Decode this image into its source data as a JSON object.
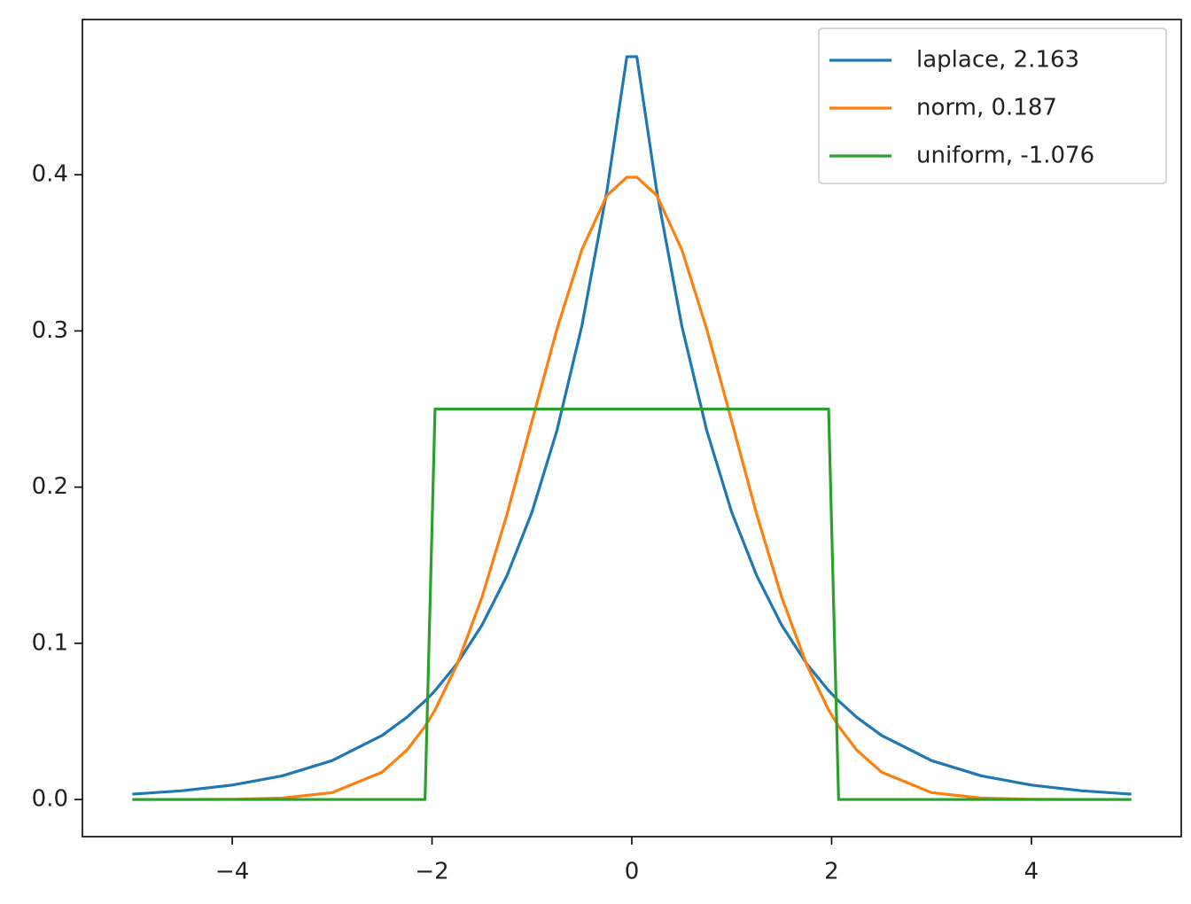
{
  "chart_data": {
    "type": "line",
    "x": [
      -5,
      -4.5,
      -4,
      -3.5,
      -3,
      -2.5,
      -2.25,
      -2.07,
      -1.97,
      -1.75,
      -1.5,
      -1.25,
      -1,
      -0.75,
      -0.5,
      -0.25,
      -0.05,
      0.05,
      0.25,
      0.5,
      0.75,
      1,
      1.25,
      1.5,
      1.75,
      1.97,
      2.07,
      2.25,
      2.5,
      3,
      3.5,
      4,
      4.5,
      5
    ],
    "series": [
      {
        "name": "laplace, 2.163",
        "color": "#1f77b4",
        "values": [
          0.0034,
          0.0056,
          0.0092,
          0.0151,
          0.0249,
          0.041,
          0.0527,
          0.0631,
          0.0697,
          0.0869,
          0.1116,
          0.1433,
          0.1839,
          0.2362,
          0.3033,
          0.3894,
          0.4756,
          0.4756,
          0.3894,
          0.3033,
          0.2362,
          0.1839,
          0.1433,
          0.1116,
          0.0869,
          0.0697,
          0.0631,
          0.0527,
          0.041,
          0.0249,
          0.0151,
          0.0092,
          0.0056,
          0.0034
        ]
      },
      {
        "name": "norm, 0.187",
        "color": "#ff7f0e",
        "values": [
          0.0,
          0.0,
          0.0001,
          0.0009,
          0.0044,
          0.0175,
          0.0317,
          0.0468,
          0.0573,
          0.0863,
          0.1295,
          0.1826,
          0.242,
          0.3011,
          0.3521,
          0.3867,
          0.3984,
          0.3984,
          0.3867,
          0.3521,
          0.3011,
          0.242,
          0.1826,
          0.1295,
          0.0863,
          0.0573,
          0.0468,
          0.0317,
          0.0175,
          0.0044,
          0.0009,
          0.0001,
          0.0,
          0.0
        ]
      },
      {
        "name": "uniform, -1.076",
        "color": "#2ca02c",
        "values": [
          0,
          0,
          0,
          0,
          0,
          0,
          0,
          0,
          0.25,
          0.25,
          0.25,
          0.25,
          0.25,
          0.25,
          0.25,
          0.25,
          0.25,
          0.25,
          0.25,
          0.25,
          0.25,
          0.25,
          0.25,
          0.25,
          0.25,
          0.25,
          0,
          0,
          0,
          0,
          0,
          0,
          0,
          0
        ]
      }
    ],
    "xlim": [
      -5.5,
      5.5
    ],
    "xticks": [
      {
        "value": -4,
        "label": "−4"
      },
      {
        "value": -2,
        "label": "−2"
      },
      0,
      2,
      4
    ],
    "ylim": [
      -0.0238,
      0.4994
    ],
    "yticks": [
      {
        "value": 0,
        "label": "0.0"
      },
      0.1,
      0.2,
      0.3,
      0.4
    ],
    "legend": "upper right"
  }
}
